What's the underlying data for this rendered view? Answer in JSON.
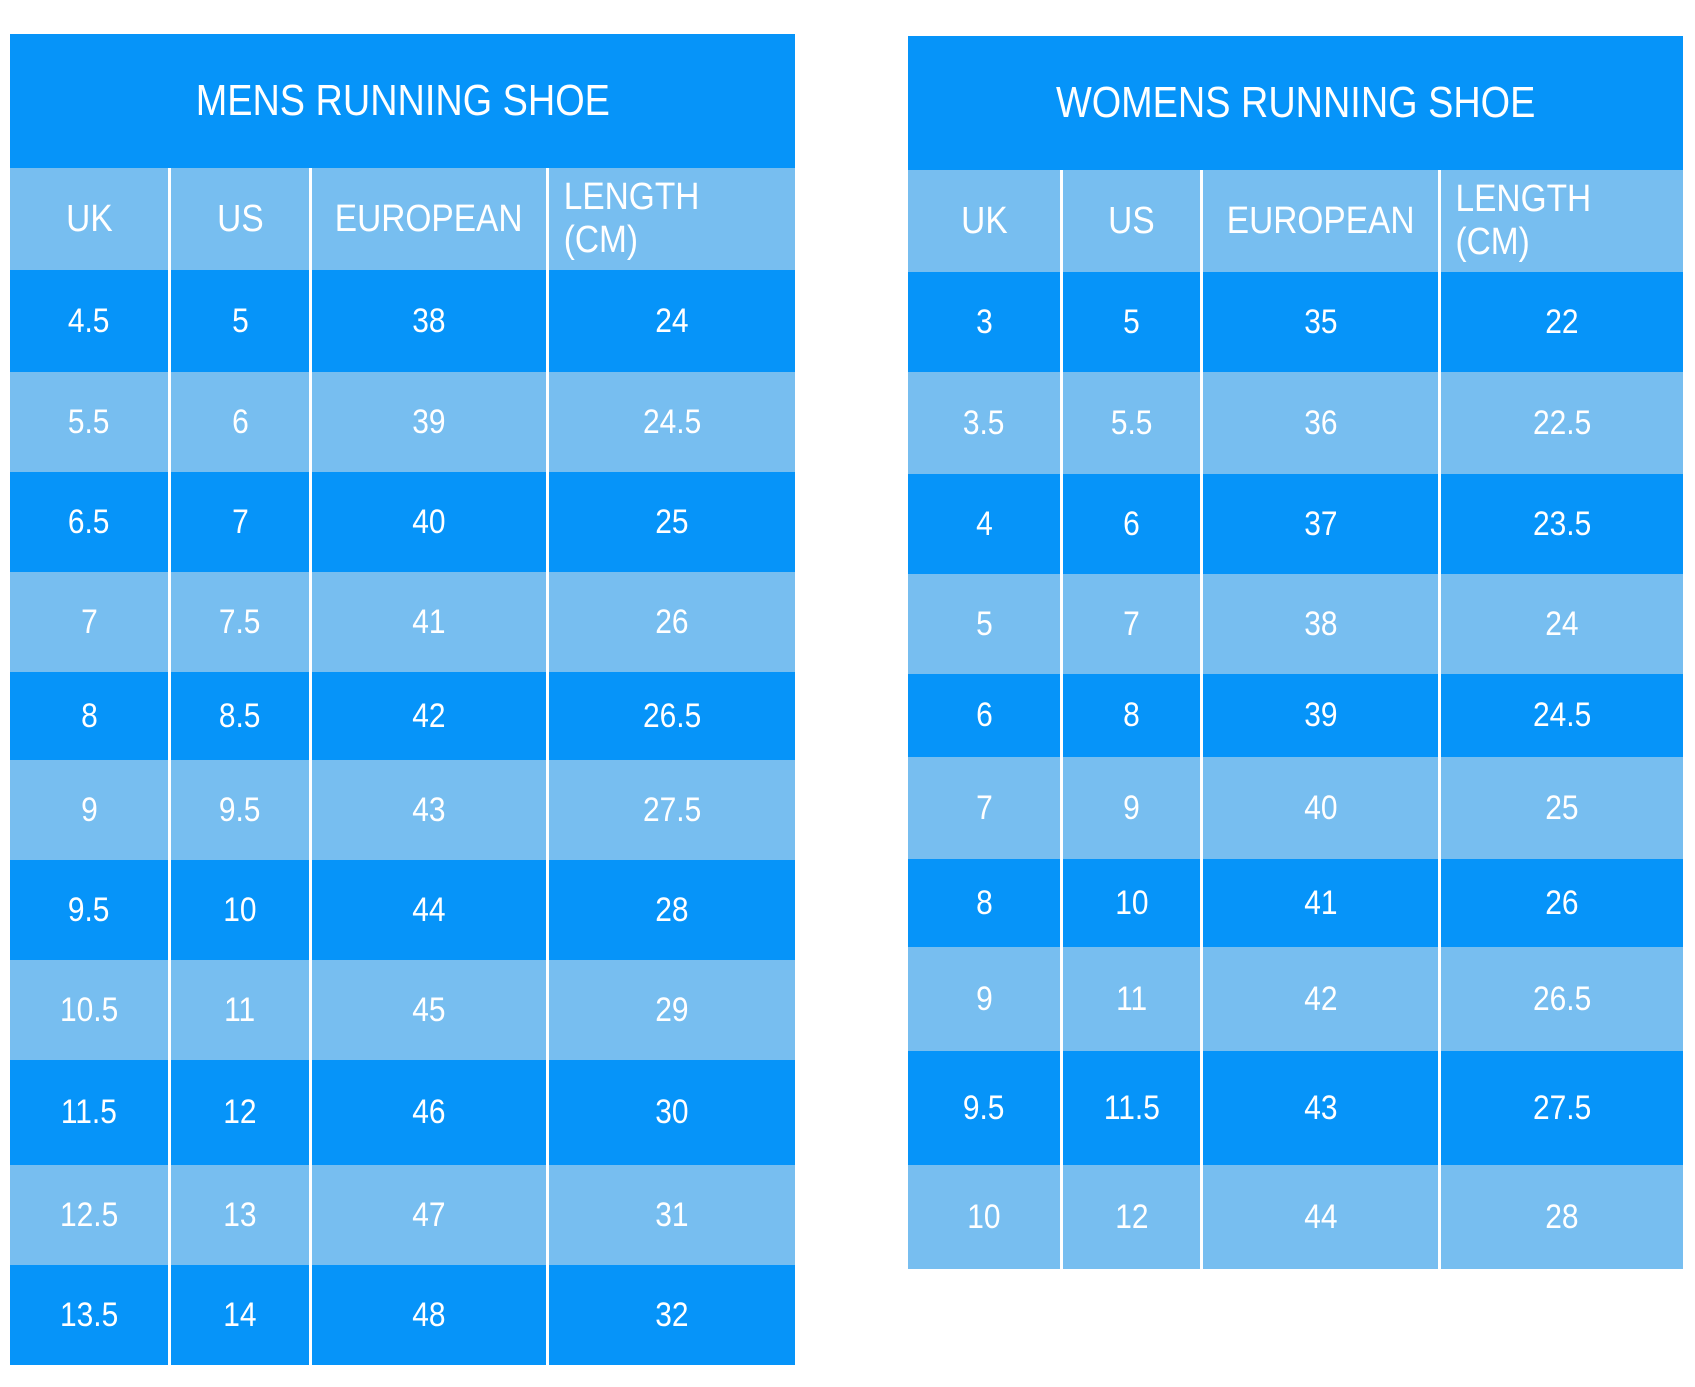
{
  "colors": {
    "dark_row": "#0694f9",
    "light_row": "#77bef0",
    "text": "#ffffff"
  },
  "chart_data": [
    {
      "type": "table",
      "title": "MENS RUNNING SHOE",
      "columns": [
        "UK",
        "US",
        "EUROPEAN",
        "LENGTH (CM)"
      ],
      "rows": [
        [
          "4.5",
          "5",
          "38",
          "24"
        ],
        [
          "5.5",
          "6",
          "39",
          "24.5"
        ],
        [
          "6.5",
          "7",
          "40",
          "25"
        ],
        [
          "7",
          "7.5",
          "41",
          "26"
        ],
        [
          "8",
          "8.5",
          "42",
          "26.5"
        ],
        [
          "9",
          "9.5",
          "43",
          "27.5"
        ],
        [
          "9.5",
          "10",
          "44",
          "28"
        ],
        [
          "10.5",
          "11",
          "45",
          "29"
        ],
        [
          "11.5",
          "12",
          "46",
          "30"
        ],
        [
          "12.5",
          "13",
          "47",
          "31"
        ],
        [
          "13.5",
          "14",
          "48",
          "32"
        ]
      ]
    },
    {
      "type": "table",
      "title": "WOMENS RUNNING SHOE",
      "columns": [
        "UK",
        "US",
        "EUROPEAN",
        "LENGTH (CM)"
      ],
      "rows": [
        [
          "3",
          "5",
          "35",
          "22"
        ],
        [
          "3.5",
          "5.5",
          "36",
          "22.5"
        ],
        [
          "4",
          "6",
          "37",
          "23.5"
        ],
        [
          "5",
          "7",
          "38",
          "24"
        ],
        [
          "6",
          "8",
          "39",
          "24.5"
        ],
        [
          "7",
          "9",
          "40",
          "25"
        ],
        [
          "8",
          "10",
          "41",
          "26"
        ],
        [
          "9",
          "11",
          "42",
          "26.5"
        ],
        [
          "9.5",
          "11.5",
          "43",
          "27.5"
        ],
        [
          "10",
          "12",
          "44",
          "28"
        ]
      ]
    }
  ]
}
